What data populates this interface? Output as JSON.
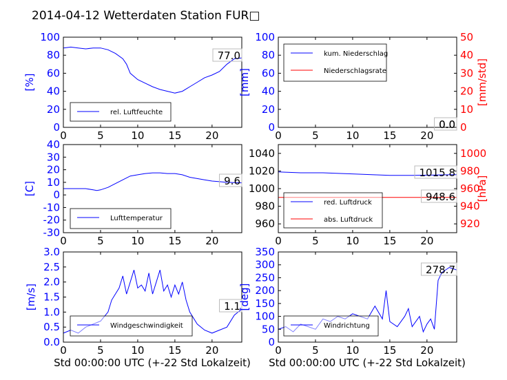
{
  "title": "2014-04-12 Wetterdaten Station FUR□",
  "xlabel": "Std 00:00:00 UTC (+-22 Std Lokalzeit)",
  "colors": {
    "blue": "#0000ff",
    "red": "#ff0000",
    "lightblue": "#8080ff"
  },
  "chart_data": [
    {
      "id": "humidity",
      "type": "line",
      "ylabel": "[%]",
      "xlim": [
        0,
        24
      ],
      "ylim": [
        0,
        100
      ],
      "xticks": [
        0,
        5,
        10,
        15,
        20
      ],
      "yticks": [
        0,
        20,
        40,
        60,
        80,
        100
      ],
      "last_value": "77.0",
      "series": [
        {
          "name": "rel. Luftfeuchte",
          "color": "#0000ff",
          "x": [
            0,
            1,
            2,
            3,
            4,
            5,
            6,
            7,
            8,
            8.5,
            9,
            10,
            11,
            12,
            13,
            14,
            15,
            16,
            17,
            18,
            19,
            20,
            21,
            22,
            23,
            24
          ],
          "y": [
            88,
            89,
            88,
            87,
            88,
            88,
            86,
            82,
            76,
            70,
            60,
            53,
            49,
            45,
            42,
            40,
            38,
            40,
            45,
            50,
            55,
            58,
            62,
            70,
            76,
            77
          ]
        }
      ]
    },
    {
      "id": "precip",
      "type": "line",
      "ylabel": "[mm]",
      "ylabel2": "[mm/std]",
      "xlim": [
        0,
        24
      ],
      "ylim": [
        0,
        100
      ],
      "ylim2": [
        0,
        50
      ],
      "xticks": [
        0,
        5,
        10,
        15,
        20
      ],
      "yticks": [
        0,
        20,
        40,
        60,
        80,
        100
      ],
      "yticks2": [
        0,
        10,
        20,
        30,
        40,
        50
      ],
      "last_value": "0.0",
      "last_value2": "0.0",
      "series": [
        {
          "name": "kum. Niederschlag",
          "color": "#0000ff",
          "x": [
            0,
            24
          ],
          "y": [
            0,
            0
          ]
        },
        {
          "name": "Niederschlagsrate",
          "color": "#ff0000",
          "x": [
            0,
            24
          ],
          "y": [
            0,
            0
          ]
        }
      ]
    },
    {
      "id": "temperature",
      "type": "line",
      "ylabel": "[C]",
      "xlim": [
        0,
        24
      ],
      "ylim": [
        -30,
        40
      ],
      "xticks": [
        0,
        5,
        10,
        15,
        20
      ],
      "yticks": [
        -30,
        -20,
        -10,
        0,
        10,
        20,
        30,
        40
      ],
      "last_value": "9.6",
      "series": [
        {
          "name": "Lufttemperatur",
          "color": "#0000ff",
          "x": [
            0,
            1,
            2,
            3,
            4,
            4.5,
            5,
            6,
            7,
            8,
            9,
            10,
            11,
            12,
            13,
            14,
            15,
            16,
            17,
            18,
            19,
            20,
            21,
            22,
            23,
            24
          ],
          "y": [
            5,
            5,
            5,
            5,
            4,
            3.5,
            4,
            6,
            9,
            12,
            15,
            16,
            17,
            17.5,
            17.5,
            17,
            17,
            16,
            14,
            13,
            12,
            11,
            10.5,
            10,
            9.8,
            9.6
          ]
        }
      ]
    },
    {
      "id": "pressure",
      "type": "line",
      "ylabel2": "[hPa]",
      "xlim": [
        0,
        24
      ],
      "ylim": [
        950,
        1050
      ],
      "ylim2": [
        910,
        1010
      ],
      "xticks": [
        0,
        5,
        10,
        15,
        20
      ],
      "yticks": [
        960,
        980,
        1000,
        1020,
        1040
      ],
      "yticks2": [
        920,
        940,
        960,
        980,
        1000
      ],
      "last_value": "1015.8",
      "last_value2": "948.6",
      "series": [
        {
          "name": "red. Luftdruck",
          "color": "#0000ff",
          "x": [
            0,
            3,
            6,
            9,
            12,
            15,
            18,
            21,
            24
          ],
          "y": [
            1019,
            1018,
            1018,
            1017,
            1016,
            1015,
            1015,
            1015.5,
            1015.8
          ]
        },
        {
          "name": "abs. Luftdruck",
          "color": "#ff0000",
          "x": [
            0,
            3,
            6,
            9,
            12,
            15,
            18,
            21,
            24
          ],
          "y": [
            949.5,
            949,
            949,
            950,
            949.5,
            948.5,
            948,
            948.5,
            948.6
          ]
        }
      ]
    },
    {
      "id": "windspeed",
      "type": "line",
      "ylabel": "[m/s]",
      "xlim": [
        0,
        24
      ],
      "ylim": [
        0,
        3.0
      ],
      "xticks": [
        0,
        5,
        10,
        15,
        20
      ],
      "yticks": [
        0,
        0.5,
        1.0,
        1.5,
        2.0,
        2.5,
        3.0
      ],
      "last_value": "1.1",
      "series": [
        {
          "name": "Windgeschwindigkeit",
          "color": "#0000ff",
          "x": [
            0,
            1,
            2,
            3,
            4,
            5,
            6,
            6.5,
            7,
            7.5,
            8,
            8.5,
            9,
            9.5,
            10,
            10.5,
            11,
            11.5,
            12,
            12.5,
            13,
            13.5,
            14,
            14.5,
            15,
            15.5,
            16,
            16.5,
            17,
            18,
            19,
            20,
            21,
            22,
            23,
            24
          ],
          "y": [
            0.3,
            0.4,
            0.3,
            0.5,
            0.6,
            0.7,
            1.0,
            1.4,
            1.6,
            1.8,
            2.2,
            1.6,
            2.0,
            2.4,
            1.8,
            1.9,
            1.7,
            2.3,
            1.6,
            2.0,
            2.4,
            1.7,
            1.9,
            1.5,
            1.9,
            1.6,
            2.0,
            1.4,
            1.0,
            0.6,
            0.4,
            0.3,
            0.4,
            0.5,
            0.9,
            1.1
          ]
        }
      ]
    },
    {
      "id": "winddir",
      "type": "line",
      "ylabel": "[deg]",
      "xlim": [
        0,
        24
      ],
      "ylim": [
        0,
        350
      ],
      "xticks": [
        0,
        5,
        10,
        15,
        20
      ],
      "yticks": [
        0,
        50,
        100,
        150,
        200,
        250,
        300,
        350
      ],
      "last_value": "278.7",
      "series": [
        {
          "name": "Windrichtung",
          "color": "#0000ff",
          "x": [
            0,
            1,
            2,
            3,
            4,
            5,
            6,
            7,
            8,
            9,
            10,
            11,
            12,
            13,
            14,
            14.5,
            15,
            16,
            17,
            17.5,
            18,
            18.5,
            19,
            19.5,
            20,
            20.5,
            21,
            21.5,
            22,
            23,
            24
          ],
          "y": [
            50,
            60,
            40,
            70,
            60,
            50,
            90,
            80,
            100,
            90,
            110,
            100,
            90,
            140,
            90,
            200,
            80,
            60,
            100,
            130,
            60,
            80,
            100,
            40,
            70,
            90,
            50,
            240,
            270,
            290,
            280
          ]
        }
      ]
    }
  ]
}
